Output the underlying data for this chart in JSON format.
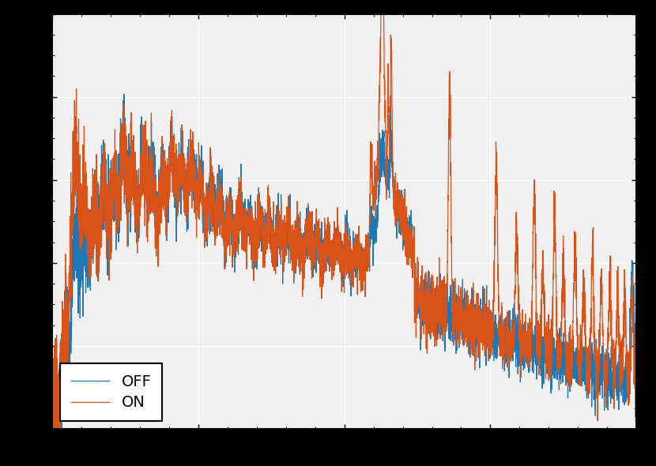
{
  "color_off": "#1f77b4",
  "color_on": "#d95319",
  "background_color": "#f0f0f0",
  "grid_color": "#ffffff",
  "legend_labels": [
    "OFF",
    "ON"
  ],
  "figsize": [
    8.3,
    5.9
  ],
  "dpi": 100,
  "linewidth": 0.9,
  "legend_fontsize": 14,
  "legend_loc": "lower left"
}
